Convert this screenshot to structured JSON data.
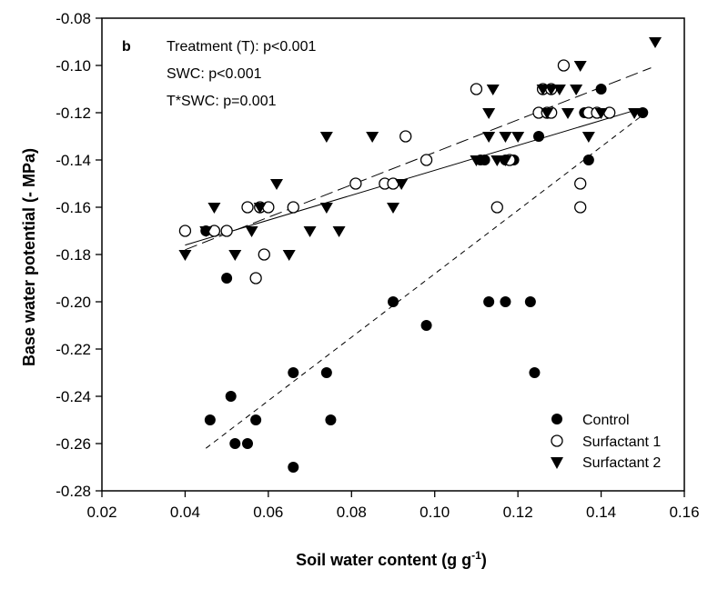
{
  "chart_data": {
    "type": "scatter",
    "panel_label": "b",
    "xlabel": "Soil water content (g g",
    "xlabel_sup": "-1",
    "xlabel_end": ")",
    "ylabel": "Base water potential (- MPa)",
    "xlim": [
      0.02,
      0.16
    ],
    "ylim": [
      -0.28,
      -0.08
    ],
    "xticks": [
      "0.02",
      "0.04",
      "0.06",
      "0.08",
      "0.10",
      "0.12",
      "0.14",
      "0.16"
    ],
    "yticks": [
      "-0.08",
      "-0.10",
      "-0.12",
      "-0.14",
      "-0.16",
      "-0.18",
      "-0.20",
      "-0.22",
      "-0.24",
      "-0.26",
      "-0.28"
    ],
    "annotations": [
      "Treatment (T): p<0.001",
      "SWC: p<0.001",
      "T*SWC: p=0.001"
    ],
    "legend_position": "bottom-right",
    "series": [
      {
        "name": "Control",
        "marker": "filled-circle",
        "points": [
          [
            0.045,
            -0.17
          ],
          [
            0.046,
            -0.25
          ],
          [
            0.05,
            -0.19
          ],
          [
            0.051,
            -0.24
          ],
          [
            0.052,
            -0.26
          ],
          [
            0.055,
            -0.26
          ],
          [
            0.057,
            -0.25
          ],
          [
            0.066,
            -0.23
          ],
          [
            0.066,
            -0.27
          ],
          [
            0.074,
            -0.23
          ],
          [
            0.075,
            -0.25
          ],
          [
            0.09,
            -0.2
          ],
          [
            0.098,
            -0.21
          ],
          [
            0.111,
            -0.14
          ],
          [
            0.112,
            -0.14
          ],
          [
            0.113,
            -0.2
          ],
          [
            0.117,
            -0.2
          ],
          [
            0.117,
            -0.14
          ],
          [
            0.118,
            -0.14
          ],
          [
            0.119,
            -0.14
          ],
          [
            0.123,
            -0.2
          ],
          [
            0.124,
            -0.23
          ],
          [
            0.125,
            -0.13
          ],
          [
            0.136,
            -0.12
          ],
          [
            0.137,
            -0.14
          ],
          [
            0.14,
            -0.11
          ],
          [
            0.15,
            -0.12
          ]
        ]
      },
      {
        "name": "Surfactant 1",
        "marker": "open-circle",
        "points": [
          [
            0.04,
            -0.17
          ],
          [
            0.047,
            -0.17
          ],
          [
            0.05,
            -0.17
          ],
          [
            0.055,
            -0.16
          ],
          [
            0.057,
            -0.19
          ],
          [
            0.058,
            -0.16
          ],
          [
            0.059,
            -0.18
          ],
          [
            0.06,
            -0.16
          ],
          [
            0.066,
            -0.16
          ],
          [
            0.081,
            -0.15
          ],
          [
            0.088,
            -0.15
          ],
          [
            0.09,
            -0.15
          ],
          [
            0.093,
            -0.13
          ],
          [
            0.098,
            -0.14
          ],
          [
            0.11,
            -0.11
          ],
          [
            0.115,
            -0.16
          ],
          [
            0.118,
            -0.14
          ],
          [
            0.125,
            -0.12
          ],
          [
            0.126,
            -0.11
          ],
          [
            0.127,
            -0.12
          ],
          [
            0.128,
            -0.12
          ],
          [
            0.128,
            -0.11
          ],
          [
            0.131,
            -0.1
          ],
          [
            0.135,
            -0.15
          ],
          [
            0.135,
            -0.16
          ],
          [
            0.137,
            -0.12
          ],
          [
            0.139,
            -0.12
          ],
          [
            0.142,
            -0.12
          ]
        ]
      },
      {
        "name": "Surfactant 2",
        "marker": "filled-triangle-down",
        "points": [
          [
            0.04,
            -0.18
          ],
          [
            0.045,
            -0.17
          ],
          [
            0.047,
            -0.16
          ],
          [
            0.052,
            -0.18
          ],
          [
            0.056,
            -0.17
          ],
          [
            0.058,
            -0.16
          ],
          [
            0.062,
            -0.15
          ],
          [
            0.065,
            -0.18
          ],
          [
            0.07,
            -0.17
          ],
          [
            0.074,
            -0.13
          ],
          [
            0.074,
            -0.16
          ],
          [
            0.077,
            -0.17
          ],
          [
            0.085,
            -0.13
          ],
          [
            0.09,
            -0.16
          ],
          [
            0.092,
            -0.15
          ],
          [
            0.11,
            -0.14
          ],
          [
            0.113,
            -0.13
          ],
          [
            0.113,
            -0.12
          ],
          [
            0.114,
            -0.11
          ],
          [
            0.115,
            -0.14
          ],
          [
            0.117,
            -0.14
          ],
          [
            0.117,
            -0.13
          ],
          [
            0.12,
            -0.13
          ],
          [
            0.126,
            -0.11
          ],
          [
            0.127,
            -0.12
          ],
          [
            0.128,
            -0.11
          ],
          [
            0.13,
            -0.11
          ],
          [
            0.132,
            -0.12
          ],
          [
            0.134,
            -0.11
          ],
          [
            0.135,
            -0.1
          ],
          [
            0.137,
            -0.13
          ],
          [
            0.14,
            -0.12
          ],
          [
            0.148,
            -0.12
          ],
          [
            0.153,
            -0.09
          ]
        ]
      }
    ],
    "fit_lines": [
      {
        "series": "Control",
        "style": "short-dash",
        "x": [
          0.045,
          0.15
        ],
        "y": [
          -0.262,
          -0.121
        ]
      },
      {
        "series": "Surfactant 1",
        "style": "long-dash",
        "x": [
          0.04,
          0.152
        ],
        "y": [
          -0.178,
          -0.101
        ]
      },
      {
        "series": "Surfactant 2",
        "style": "solid",
        "x": [
          0.04,
          0.15
        ],
        "y": [
          -0.176,
          -0.118
        ]
      }
    ]
  }
}
